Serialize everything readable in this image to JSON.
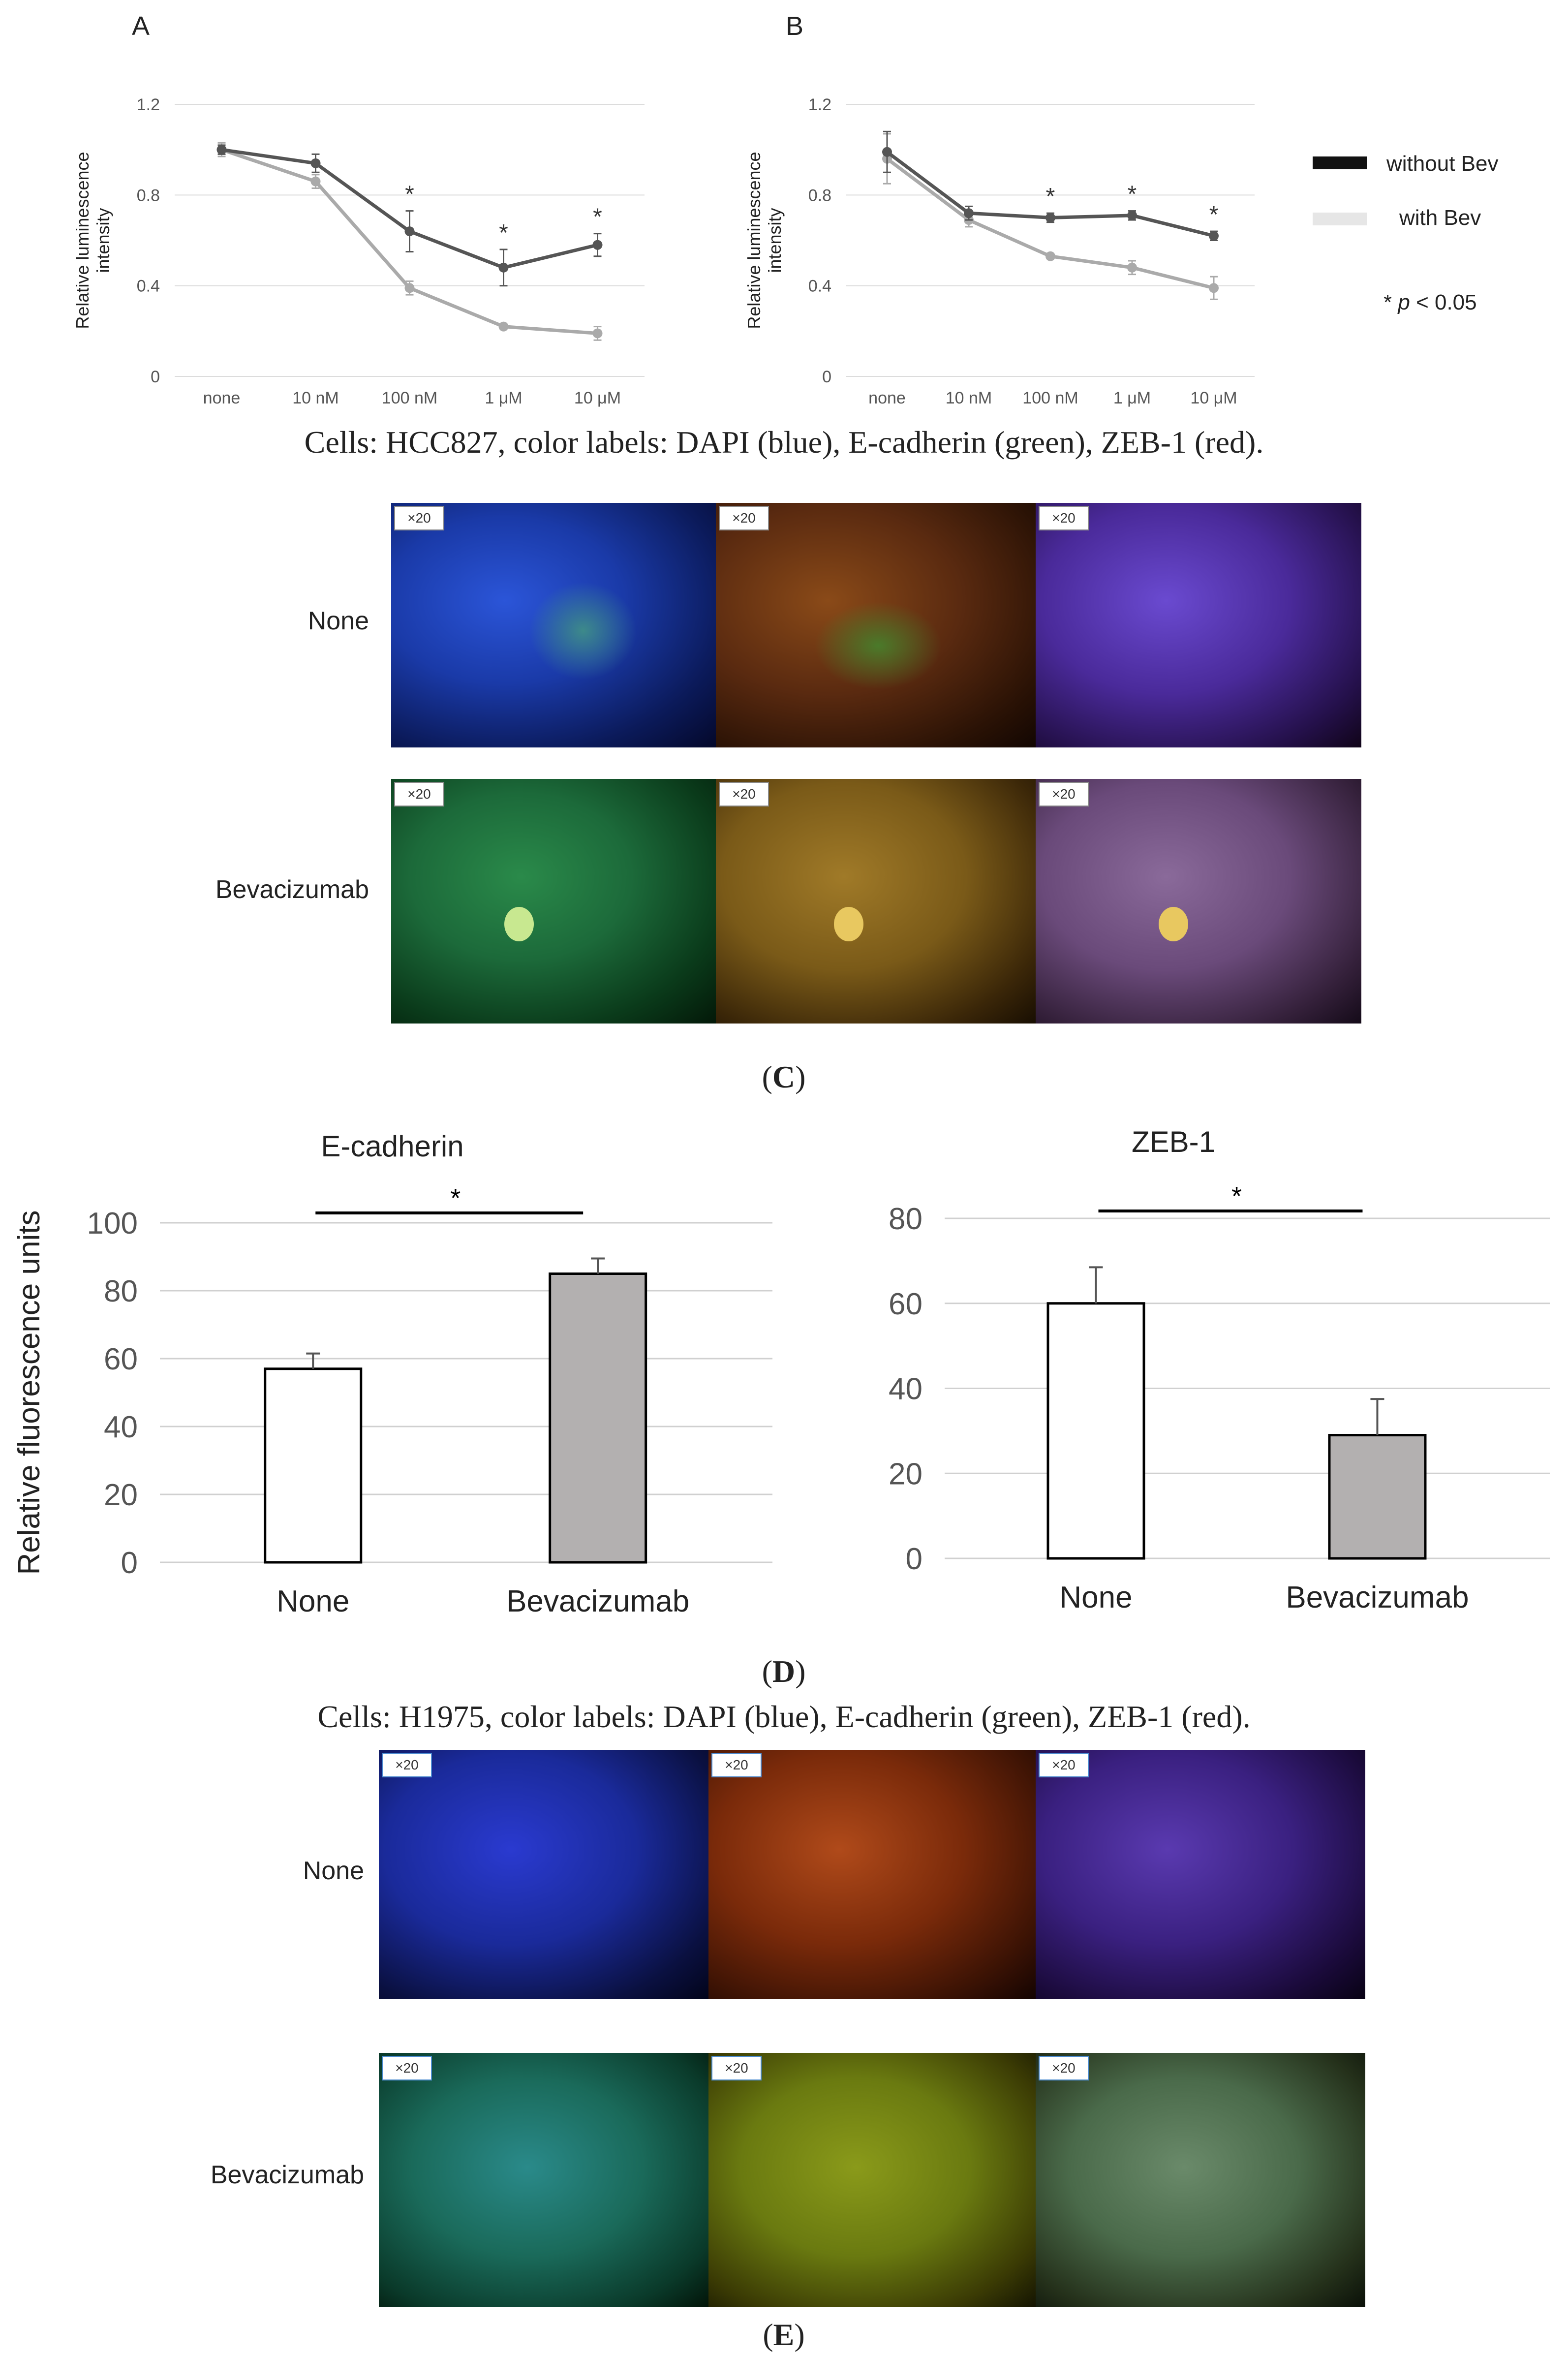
{
  "panels": {
    "A": "A",
    "B": "B",
    "C": "C",
    "D": "D",
    "E": "E"
  },
  "legend": {
    "without": "without Bev",
    "with": "with Bev",
    "pvalue_star": "*",
    "pvalue_p": "p",
    "pvalue_rest": " < 0.05",
    "without_color": "#555555",
    "with_color": "#aaaaaa"
  },
  "captions": {
    "hcc827": "Cells: HCC827, color labels: DAPI (blue), E-cadherin (green), ZEB-1 (red).",
    "h1975": "Cells: H1975, color labels: DAPI (blue), E-cadherin (green), ZEB-1 (red)."
  },
  "image_rows": {
    "none": "None",
    "bev": "Bevacizumab",
    "magnification": "×20"
  },
  "chart_data": [
    {
      "id": "A",
      "type": "line",
      "categories": [
        "none",
        "10 nM",
        "100 nM",
        "1 μM",
        "10 μM"
      ],
      "ylabel": "Relative luminescence intensity",
      "ylabel_lines": [
        "Relative luminescence",
        "intensity"
      ],
      "yticks": [
        "0",
        "0.4",
        "0.8",
        "1.2"
      ],
      "ylim": [
        0,
        1.2
      ],
      "grid": true,
      "series": [
        {
          "name": "without Bev",
          "color": "#555555",
          "values": [
            1.0,
            0.94,
            0.64,
            0.48,
            0.58
          ],
          "err": [
            0.02,
            0.04,
            0.09,
            0.08,
            0.05
          ]
        },
        {
          "name": "with Bev",
          "color": "#aaaaaa",
          "values": [
            1.0,
            0.86,
            0.39,
            0.22,
            0.19
          ],
          "err": [
            0.03,
            0.03,
            0.03,
            0.01,
            0.03
          ]
        }
      ],
      "significance": [
        false,
        false,
        true,
        true,
        true
      ],
      "sig_mark": "*"
    },
    {
      "id": "B",
      "type": "line",
      "categories": [
        "none",
        "10 nM",
        "100 nM",
        "1 μM",
        "10 μM"
      ],
      "ylabel": "Relative luminescence intensity",
      "ylabel_lines": [
        "Relative luminescence",
        "intensity"
      ],
      "yticks": [
        "0",
        "0.4",
        "0.8",
        "1.2"
      ],
      "ylim": [
        0,
        1.2
      ],
      "grid": true,
      "series": [
        {
          "name": "without Bev",
          "color": "#555555",
          "values": [
            0.99,
            0.72,
            0.7,
            0.71,
            0.62
          ],
          "err": [
            0.09,
            0.03,
            0.02,
            0.02,
            0.02
          ]
        },
        {
          "name": "with Bev",
          "color": "#aaaaaa",
          "values": [
            0.96,
            0.69,
            0.53,
            0.48,
            0.39
          ],
          "err": [
            0.11,
            0.03,
            0.01,
            0.03,
            0.05
          ]
        }
      ],
      "significance": [
        false,
        false,
        true,
        true,
        true
      ],
      "sig_mark": "*"
    },
    {
      "id": "D-ecad",
      "type": "bar",
      "title": "E-cadherin",
      "categories": [
        "None",
        "Bevacizumab"
      ],
      "values": [
        57,
        85
      ],
      "err": [
        4.5,
        4.5
      ],
      "colors": [
        "#ffffff",
        "#b3b0b0"
      ],
      "yticks": [
        "0",
        "20",
        "40",
        "60",
        "80",
        "100"
      ],
      "ylim": [
        0,
        100
      ],
      "ylabel": "Relative fluorescence units",
      "grid": true,
      "sig_mark": "*"
    },
    {
      "id": "D-zeb1",
      "type": "bar",
      "title": "ZEB-1",
      "categories": [
        "None",
        "Bevacizumab"
      ],
      "values": [
        60,
        29
      ],
      "err": [
        8.5,
        8.5
      ],
      "colors": [
        "#ffffff",
        "#b3b0b0"
      ],
      "yticks": [
        "0",
        "20",
        "40",
        "60",
        "80"
      ],
      "ylim": [
        0,
        80
      ],
      "grid": true,
      "sig_mark": "*"
    }
  ]
}
